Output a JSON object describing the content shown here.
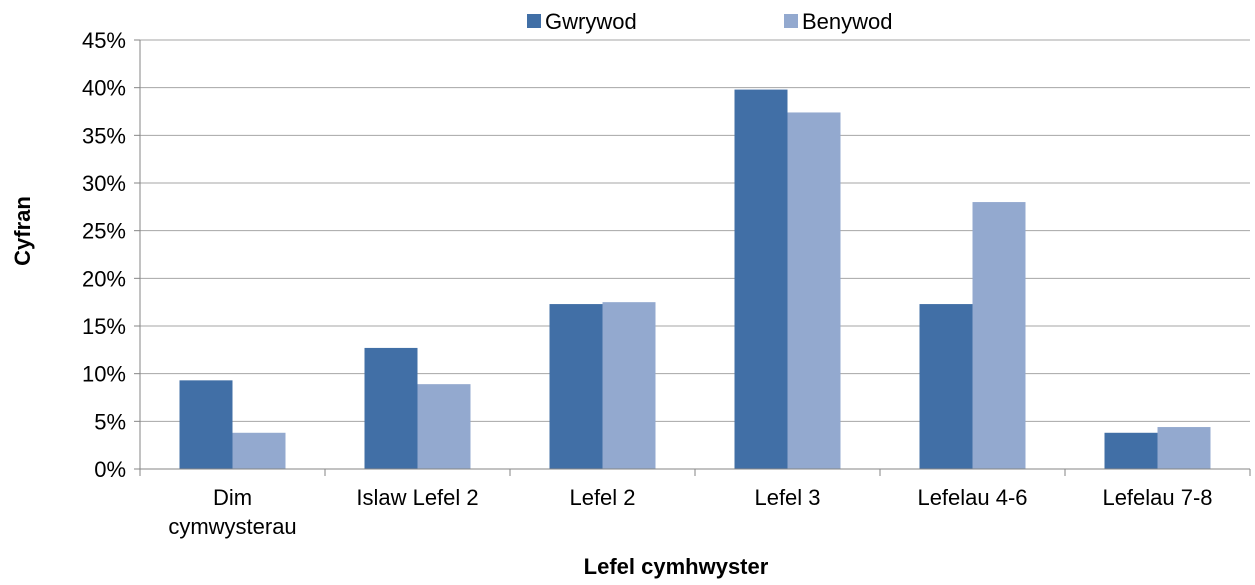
{
  "chart_data": {
    "type": "bar",
    "categories": [
      [
        "Dim",
        "cymwysterau"
      ],
      [
        "Islaw Lefel 2"
      ],
      [
        "Lefel 2"
      ],
      [
        "Lefel 3"
      ],
      [
        "Lefelau 4-6"
      ],
      [
        "Lefelau 7-8"
      ]
    ],
    "series": [
      {
        "name": "Gwrywod",
        "color": "#416FA6",
        "values": [
          9.3,
          12.7,
          17.3,
          39.8,
          17.3,
          3.8
        ]
      },
      {
        "name": "Benywod",
        "color": "#93A9CF",
        "values": [
          3.8,
          8.9,
          17.5,
          37.4,
          28.0,
          4.4
        ]
      }
    ],
    "xlabel": "Lefel cymhwyster",
    "ylabel": "Cyfran",
    "ylim": [
      0,
      45
    ],
    "yticks": [
      0,
      5,
      10,
      15,
      20,
      25,
      30,
      35,
      40,
      45
    ],
    "ytick_suffix": "%",
    "grid": true,
    "legend_position": "top"
  }
}
